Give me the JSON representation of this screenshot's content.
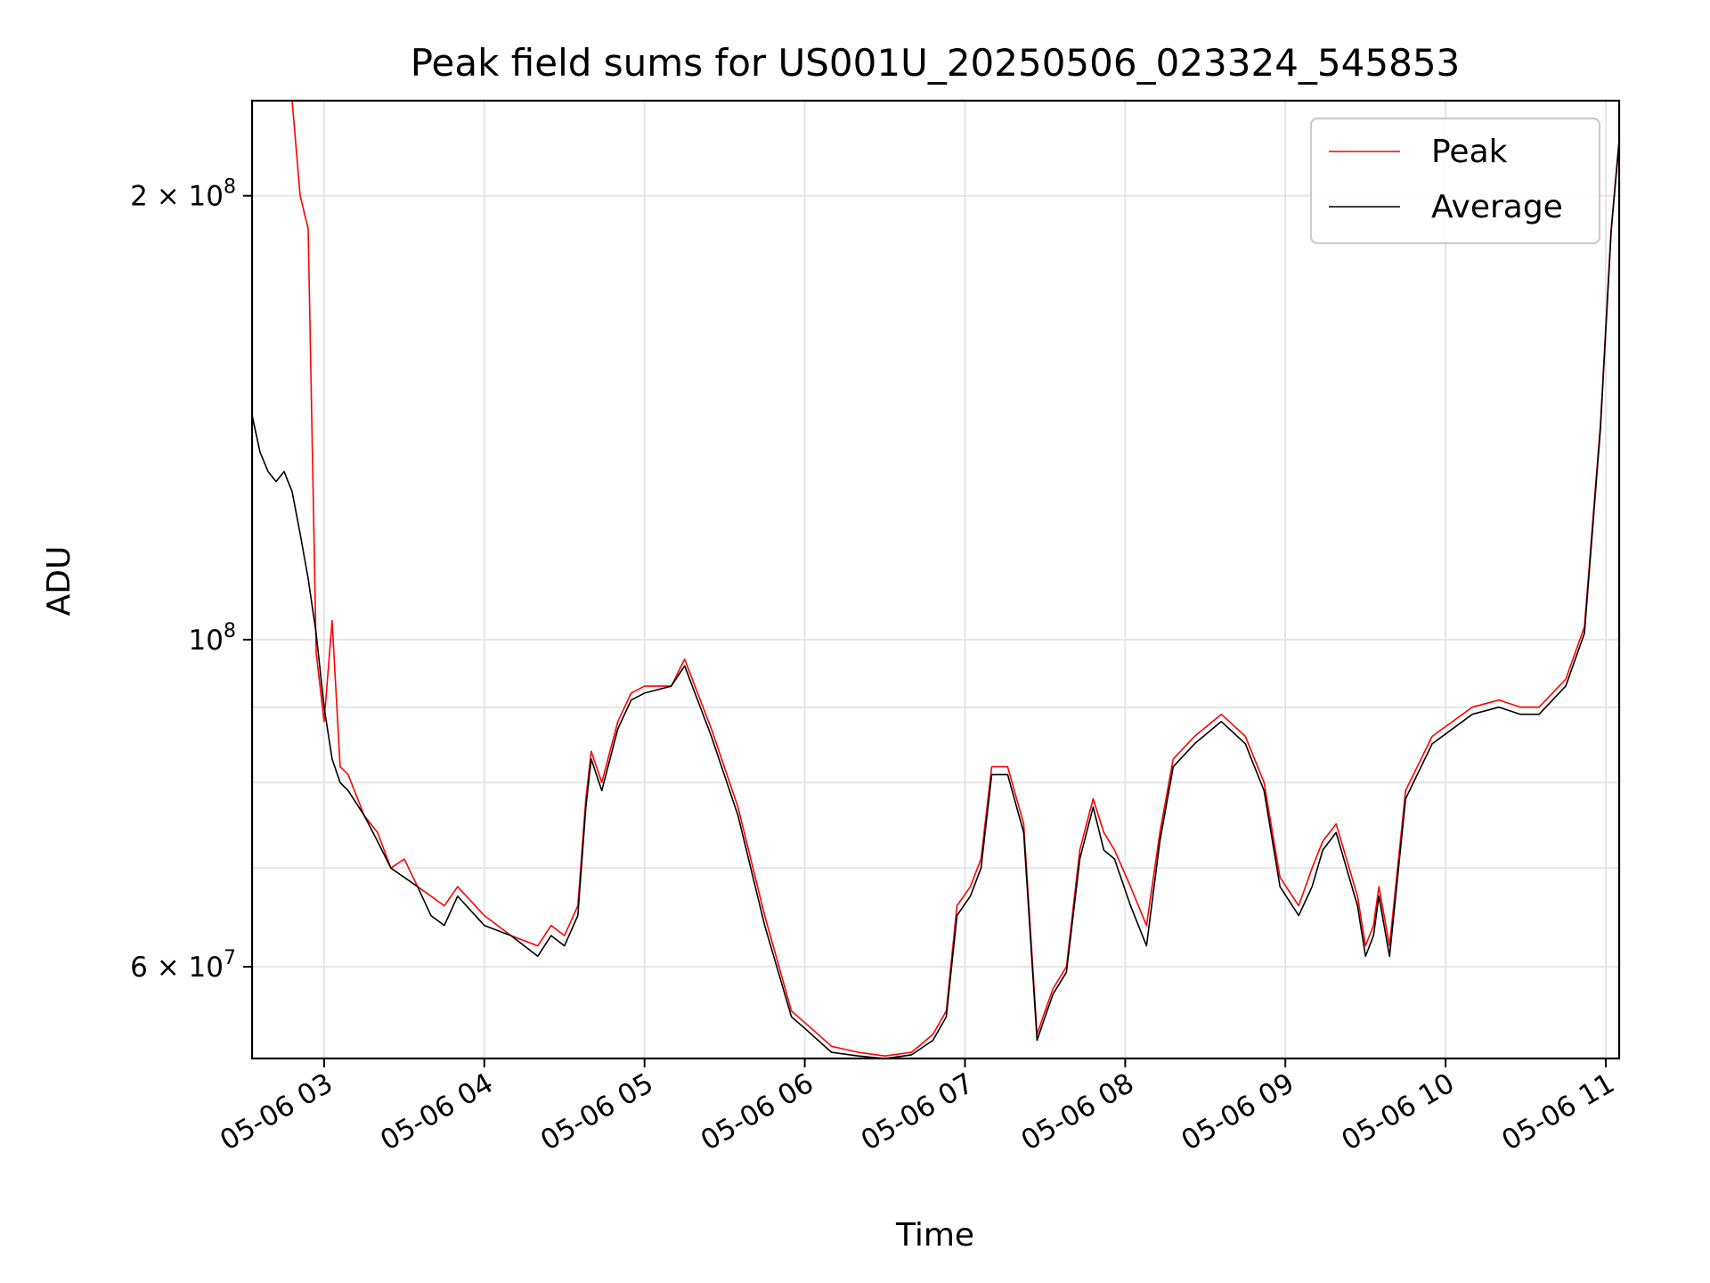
{
  "chart_data": {
    "type": "line",
    "title": "Peak field sums for US001U_20250506_023324_545853",
    "xlabel": "Time",
    "ylabel": "ADU",
    "y_scale": "log",
    "ylim": [
      52000000,
      232000000
    ],
    "xlim": [
      "2025-05-06 02:33",
      "2025-05-06 11:05"
    ],
    "x_ticks": [
      {
        "t": "2025-05-06 03:00",
        "label": "05-06 03"
      },
      {
        "t": "2025-05-06 04:00",
        "label": "05-06 04"
      },
      {
        "t": "2025-05-06 05:00",
        "label": "05-06 05"
      },
      {
        "t": "2025-05-06 06:00",
        "label": "05-06 06"
      },
      {
        "t": "2025-05-06 07:00",
        "label": "05-06 07"
      },
      {
        "t": "2025-05-06 08:00",
        "label": "05-06 08"
      },
      {
        "t": "2025-05-06 09:00",
        "label": "05-06 09"
      },
      {
        "t": "2025-05-06 10:00",
        "label": "05-06 10"
      },
      {
        "t": "2025-05-06 11:00",
        "label": "05-06 11"
      }
    ],
    "y_ticks": [
      {
        "value": 60000000,
        "mantissa": "6",
        "exponent": "7"
      },
      {
        "value": 100000000,
        "mantissa": "",
        "exponent": "8"
      },
      {
        "value": 200000000,
        "mantissa": "2",
        "exponent": "8"
      }
    ],
    "y_minor_grid": [
      70000000,
      80000000,
      90000000
    ],
    "grid": true,
    "legend_position": "top-right",
    "series": [
      {
        "name": "Peak",
        "color": "#ff0000",
        "x": [
          "2025-05-06 02:33",
          "2025-05-06 02:36",
          "2025-05-06 02:39",
          "2025-05-06 02:42",
          "2025-05-06 02:45",
          "2025-05-06 02:48",
          "2025-05-06 02:51",
          "2025-05-06 02:54",
          "2025-05-06 02:57",
          "2025-05-06 03:00",
          "2025-05-06 03:03",
          "2025-05-06 03:06",
          "2025-05-06 03:09",
          "2025-05-06 03:15",
          "2025-05-06 03:20",
          "2025-05-06 03:25",
          "2025-05-06 03:30",
          "2025-05-06 03:35",
          "2025-05-06 03:40",
          "2025-05-06 03:45",
          "2025-05-06 03:50",
          "2025-05-06 04:00",
          "2025-05-06 04:10",
          "2025-05-06 04:20",
          "2025-05-06 04:25",
          "2025-05-06 04:30",
          "2025-05-06 04:35",
          "2025-05-06 04:38",
          "2025-05-06 04:40",
          "2025-05-06 04:44",
          "2025-05-06 04:50",
          "2025-05-06 04:55",
          "2025-05-06 05:00",
          "2025-05-06 05:10",
          "2025-05-06 05:15",
          "2025-05-06 05:25",
          "2025-05-06 05:35",
          "2025-05-06 05:45",
          "2025-05-06 05:55",
          "2025-05-06 06:00",
          "2025-05-06 06:10",
          "2025-05-06 06:20",
          "2025-05-06 06:30",
          "2025-05-06 06:40",
          "2025-05-06 06:48",
          "2025-05-06 06:53",
          "2025-05-06 06:57",
          "2025-05-06 07:02",
          "2025-05-06 07:06",
          "2025-05-06 07:10",
          "2025-05-06 07:16",
          "2025-05-06 07:22",
          "2025-05-06 07:27",
          "2025-05-06 07:30",
          "2025-05-06 07:33",
          "2025-05-06 07:38",
          "2025-05-06 07:43",
          "2025-05-06 07:48",
          "2025-05-06 07:52",
          "2025-05-06 07:56",
          "2025-05-06 08:02",
          "2025-05-06 08:08",
          "2025-05-06 08:13",
          "2025-05-06 08:18",
          "2025-05-06 08:26",
          "2025-05-06 08:36",
          "2025-05-06 08:45",
          "2025-05-06 08:52",
          "2025-05-06 08:58",
          "2025-05-06 09:05",
          "2025-05-06 09:10",
          "2025-05-06 09:14",
          "2025-05-06 09:19",
          "2025-05-06 09:27",
          "2025-05-06 09:30",
          "2025-05-06 09:33",
          "2025-05-06 09:35",
          "2025-05-06 09:39",
          "2025-05-06 09:45",
          "2025-05-06 09:55",
          "2025-05-06 10:10",
          "2025-05-06 10:20",
          "2025-05-06 10:28",
          "2025-05-06 10:35",
          "2025-05-06 10:45",
          "2025-05-06 10:52",
          "2025-05-06 10:58",
          "2025-05-06 11:02",
          "2025-05-06 11:05"
        ],
        "y": [
          232000000,
          232000000,
          232000000,
          232000000,
          232000000,
          232000000,
          200000000,
          190000000,
          98000000,
          88000000,
          103000000,
          82000000,
          81000000,
          76000000,
          74000000,
          70000000,
          71000000,
          68000000,
          67000000,
          66000000,
          68000000,
          65000000,
          63000000,
          62000000,
          64000000,
          63000000,
          66000000,
          78000000,
          84000000,
          80000000,
          88000000,
          92000000,
          93000000,
          93000000,
          97000000,
          87000000,
          77000000,
          65000000,
          56000000,
          55000000,
          53000000,
          52500000,
          52200000,
          52500000,
          54000000,
          56000000,
          66000000,
          68000000,
          71000000,
          82000000,
          82000000,
          75000000,
          54000000,
          56000000,
          58000000,
          60000000,
          72000000,
          78000000,
          74000000,
          72000000,
          68000000,
          64000000,
          74000000,
          83000000,
          86000000,
          89000000,
          86000000,
          80000000,
          69000000,
          66000000,
          70000000,
          73000000,
          75000000,
          67000000,
          62000000,
          64000000,
          68000000,
          62000000,
          79000000,
          86000000,
          90000000,
          91000000,
          90000000,
          90000000,
          94000000,
          102000000,
          140000000,
          190000000,
          218000000
        ]
      },
      {
        "name": "Average",
        "color": "#000000",
        "x": [
          "2025-05-06 02:33",
          "2025-05-06 02:36",
          "2025-05-06 02:39",
          "2025-05-06 02:42",
          "2025-05-06 02:45",
          "2025-05-06 02:48",
          "2025-05-06 02:51",
          "2025-05-06 02:54",
          "2025-05-06 02:57",
          "2025-05-06 03:00",
          "2025-05-06 03:03",
          "2025-05-06 03:06",
          "2025-05-06 03:09",
          "2025-05-06 03:15",
          "2025-05-06 03:20",
          "2025-05-06 03:25",
          "2025-05-06 03:30",
          "2025-05-06 03:35",
          "2025-05-06 03:40",
          "2025-05-06 03:45",
          "2025-05-06 03:50",
          "2025-05-06 04:00",
          "2025-05-06 04:10",
          "2025-05-06 04:20",
          "2025-05-06 04:25",
          "2025-05-06 04:30",
          "2025-05-06 04:35",
          "2025-05-06 04:38",
          "2025-05-06 04:40",
          "2025-05-06 04:44",
          "2025-05-06 04:50",
          "2025-05-06 04:55",
          "2025-05-06 05:00",
          "2025-05-06 05:10",
          "2025-05-06 05:15",
          "2025-05-06 05:25",
          "2025-05-06 05:35",
          "2025-05-06 05:45",
          "2025-05-06 05:55",
          "2025-05-06 06:00",
          "2025-05-06 06:10",
          "2025-05-06 06:20",
          "2025-05-06 06:30",
          "2025-05-06 06:40",
          "2025-05-06 06:48",
          "2025-05-06 06:53",
          "2025-05-06 06:57",
          "2025-05-06 07:02",
          "2025-05-06 07:06",
          "2025-05-06 07:10",
          "2025-05-06 07:16",
          "2025-05-06 07:22",
          "2025-05-06 07:27",
          "2025-05-06 07:30",
          "2025-05-06 07:33",
          "2025-05-06 07:38",
          "2025-05-06 07:43",
          "2025-05-06 07:48",
          "2025-05-06 07:52",
          "2025-05-06 07:56",
          "2025-05-06 08:02",
          "2025-05-06 08:08",
          "2025-05-06 08:13",
          "2025-05-06 08:18",
          "2025-05-06 08:26",
          "2025-05-06 08:36",
          "2025-05-06 08:45",
          "2025-05-06 08:52",
          "2025-05-06 08:58",
          "2025-05-06 09:05",
          "2025-05-06 09:10",
          "2025-05-06 09:14",
          "2025-05-06 09:19",
          "2025-05-06 09:27",
          "2025-05-06 09:30",
          "2025-05-06 09:33",
          "2025-05-06 09:35",
          "2025-05-06 09:39",
          "2025-05-06 09:45",
          "2025-05-06 09:55",
          "2025-05-06 10:10",
          "2025-05-06 10:20",
          "2025-05-06 10:28",
          "2025-05-06 10:35",
          "2025-05-06 10:45",
          "2025-05-06 10:52",
          "2025-05-06 10:58",
          "2025-05-06 11:02",
          "2025-05-06 11:05"
        ],
        "y": [
          142000000,
          134000000,
          130000000,
          128000000,
          130000000,
          126000000,
          118000000,
          110000000,
          101000000,
          90000000,
          83000000,
          80000000,
          79000000,
          76000000,
          73000000,
          70000000,
          69000000,
          68000000,
          65000000,
          64000000,
          67000000,
          64000000,
          63000000,
          61000000,
          63000000,
          62000000,
          65000000,
          77000000,
          83000000,
          79000000,
          87000000,
          91000000,
          92000000,
          93000000,
          96000000,
          86000000,
          76000000,
          64000000,
          55500000,
          54500000,
          52500000,
          52200000,
          52000000,
          52300000,
          53500000,
          55500000,
          65000000,
          67000000,
          70000000,
          81000000,
          81000000,
          74000000,
          53500000,
          55500000,
          57500000,
          59500000,
          71000000,
          77000000,
          72000000,
          71000000,
          66000000,
          62000000,
          73000000,
          82000000,
          85000000,
          88000000,
          85000000,
          79000000,
          68000000,
          65000000,
          68000000,
          72000000,
          74000000,
          66000000,
          61000000,
          63000000,
          67000000,
          61000000,
          78000000,
          85000000,
          89000000,
          90000000,
          89000000,
          89000000,
          93000000,
          101000000,
          139000000,
          189000000,
          218000000
        ]
      }
    ]
  }
}
